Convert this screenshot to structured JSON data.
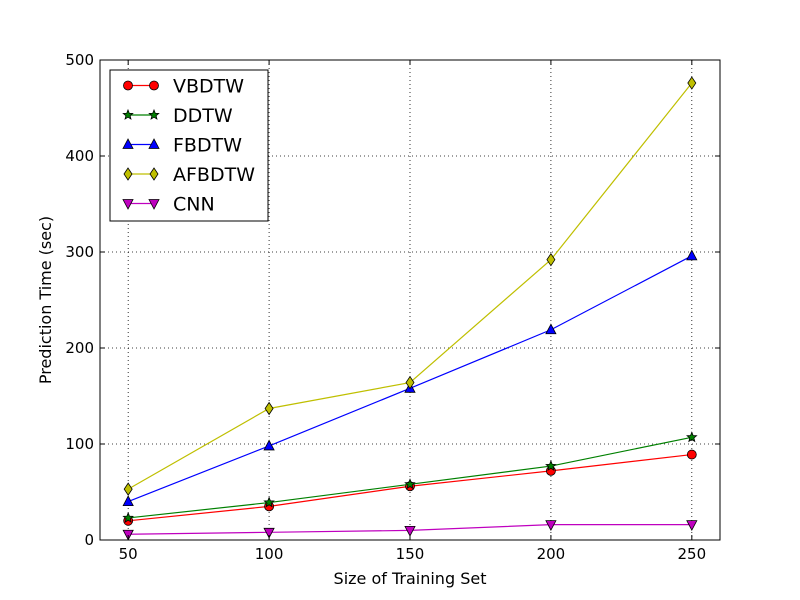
{
  "chart_data": {
    "type": "line",
    "title": "",
    "xlabel": "Size of Training Set",
    "ylabel": "Prediction Time (sec)",
    "x": [
      50,
      100,
      150,
      200,
      250
    ],
    "x_ticks": [
      "50",
      "100",
      "150",
      "200",
      "250"
    ],
    "y_ticks": [
      "0",
      "100",
      "200",
      "300",
      "400",
      "500"
    ],
    "xlim": [
      40,
      260
    ],
    "ylim": [
      0,
      500
    ],
    "grid": true,
    "legend_position": "top-left",
    "series": [
      {
        "name": "VBDTW",
        "color": "#ff0000",
        "marker": "circle",
        "values": [
          20,
          35,
          56,
          72,
          89
        ]
      },
      {
        "name": "DDTW",
        "color": "#008000",
        "marker": "star",
        "values": [
          23,
          39,
          58,
          77,
          107
        ]
      },
      {
        "name": "FBDTW",
        "color": "#0000ff",
        "marker": "triangle-up",
        "values": [
          40,
          98,
          158,
          219,
          296
        ]
      },
      {
        "name": "AFBDTW",
        "color": "#bfbf00",
        "marker": "diamond",
        "values": [
          53,
          137,
          164,
          292,
          476
        ]
      },
      {
        "name": "CNN",
        "color": "#bf00bf",
        "marker": "triangle-down",
        "values": [
          6,
          8,
          10,
          16,
          16
        ]
      }
    ]
  }
}
